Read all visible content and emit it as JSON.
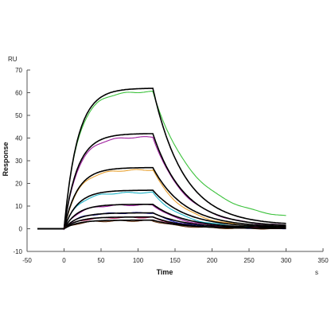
{
  "chart_data": {
    "type": "line",
    "title": "",
    "xlabel": "Time",
    "ylabel": "Response",
    "x_unit": "s",
    "y_unit": "RU",
    "xlim": [
      -50,
      350
    ],
    "ylim": [
      -10,
      70
    ],
    "x_ticks": [
      -50,
      0,
      50,
      100,
      150,
      200,
      250,
      300,
      350
    ],
    "y_ticks": [
      -10,
      0,
      10,
      20,
      30,
      40,
      50,
      60,
      70
    ],
    "grid": false,
    "legend": "none",
    "association_start": 0,
    "dissociation_start": 120,
    "end": 300,
    "series": [
      {
        "role": "measured",
        "color": "#3cc23c",
        "rmax_association": 60.5,
        "value_at_end": 3.5
      },
      {
        "role": "fit",
        "color": "#000000",
        "rmax_association": 62.0,
        "value_at_end": 1.5
      },
      {
        "role": "measured",
        "color": "#a020a0",
        "rmax_association": 40.5,
        "value_at_end": 1.0
      },
      {
        "role": "fit",
        "color": "#000000",
        "rmax_association": 42.0,
        "value_at_end": 1.0
      },
      {
        "role": "measured",
        "color": "#e8a030",
        "rmax_association": 26.0,
        "value_at_end": 0.5
      },
      {
        "role": "fit",
        "color": "#000000",
        "rmax_association": 27.0,
        "value_at_end": 0.7
      },
      {
        "role": "measured",
        "color": "#20b4c8",
        "rmax_association": 16.0,
        "value_at_end": 0.3
      },
      {
        "role": "fit",
        "color": "#000000",
        "rmax_association": 17.0,
        "value_at_end": 0.5
      },
      {
        "role": "measured",
        "color": "#a020a0",
        "rmax_association": 10.5,
        "value_at_end": 0.2
      },
      {
        "role": "fit",
        "color": "#000000",
        "rmax_association": 10.8,
        "value_at_end": 0.3
      },
      {
        "role": "measured",
        "color": "#2020c0",
        "rmax_association": 7.0,
        "value_at_end": 0.1
      },
      {
        "role": "fit",
        "color": "#000000",
        "rmax_association": 7.0,
        "value_at_end": 0.2
      },
      {
        "role": "measured",
        "color": "#c02060",
        "rmax_association": 5.0,
        "value_at_end": 0.1
      },
      {
        "role": "fit",
        "color": "#000000",
        "rmax_association": 5.2,
        "value_at_end": 0.1
      },
      {
        "role": "measured",
        "color": "#6a3a1a",
        "rmax_association": 3.5,
        "value_at_end": 0.0
      },
      {
        "role": "fit",
        "color": "#000000",
        "rmax_association": 3.8,
        "value_at_end": 0.1
      }
    ]
  }
}
